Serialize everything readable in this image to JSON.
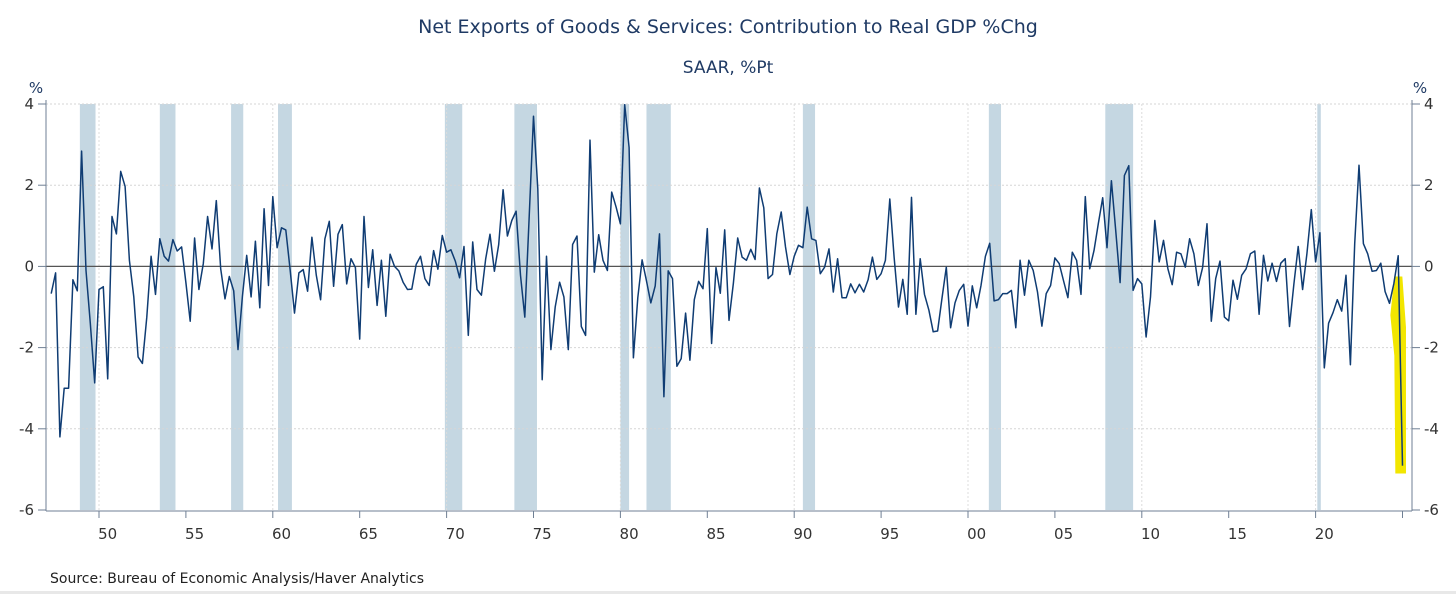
{
  "chart_data": {
    "type": "line",
    "title": "Net Exports of Goods & Services: Contribution to Real GDP %Chg",
    "subtitle": "SAAR, %Pt",
    "ylabel_left": "%",
    "ylabel_right": "%",
    "source": "Source:  Bureau of Economic Analysis/Haver Analytics",
    "ylim": [
      -6,
      4
    ],
    "yticks": [
      4,
      2,
      0,
      -2,
      -4,
      -6
    ],
    "ytick_labels": [
      "4",
      "2",
      "0",
      "-2",
      "-4",
      "-6"
    ],
    "xlim": [
      1947,
      2025.5
    ],
    "xticks": [
      1950,
      1955,
      1960,
      1965,
      1970,
      1975,
      1980,
      1985,
      1990,
      1995,
      2000,
      2005,
      2010,
      2015,
      2020
    ],
    "xtick_labels": [
      "50",
      "55",
      "60",
      "65",
      "70",
      "75",
      "80",
      "85",
      "90",
      "95",
      "00",
      "05",
      "10",
      "15",
      "20"
    ],
    "grid": true,
    "frequency": "quarterly",
    "x_start": 1947.25,
    "x_step": 0.25,
    "series": [
      {
        "name": "Net Exports contribution",
        "color": "#0f3c73",
        "values": [
          -0.67,
          -0.16,
          -4.2,
          -3.0,
          -3.0,
          -0.33,
          -0.6,
          2.84,
          -0.1,
          -1.4,
          -2.87,
          -0.57,
          -0.5,
          -2.77,
          1.23,
          0.8,
          2.34,
          1.97,
          0.15,
          -0.75,
          -2.23,
          -2.39,
          -1.25,
          0.25,
          -0.69,
          0.68,
          0.25,
          0.13,
          0.66,
          0.38,
          0.48,
          -0.4,
          -1.35,
          0.7,
          -0.57,
          0.07,
          1.23,
          0.43,
          1.62,
          -0.06,
          -0.8,
          -0.25,
          -0.6,
          -2.05,
          -0.74,
          0.27,
          -0.75,
          0.62,
          -1.02,
          1.42,
          -0.47,
          1.72,
          0.46,
          0.95,
          0.9,
          -0.1,
          -1.15,
          -0.16,
          -0.08,
          -0.61,
          0.72,
          -0.22,
          -0.82,
          0.68,
          1.11,
          -0.49,
          0.79,
          1.03,
          -0.43,
          0.19,
          -0.03,
          -1.79,
          1.23,
          -0.52,
          0.41,
          -0.96,
          0.15,
          -1.23,
          0.3,
          0,
          -0.11,
          -0.39,
          -0.57,
          -0.56,
          0.05,
          0.25,
          -0.3,
          -0.47,
          0.39,
          -0.07,
          0.76,
          0.35,
          0.41,
          0.13,
          -0.28,
          0.49,
          -1.7,
          0.6,
          -0.57,
          -0.71,
          0.19,
          0.79,
          -0.12,
          0.54,
          1.89,
          0.75,
          1.13,
          1.36,
          -0.22,
          -1.25,
          1.23,
          3.7,
          1.91,
          -2.79,
          0.25,
          -2.05,
          -1.0,
          -0.39,
          -0.75,
          -2.05,
          0.54,
          0.75,
          -1.48,
          -1.7,
          3.11,
          -0.14,
          0.78,
          0.15,
          -0.1,
          1.83,
          1.46,
          1.05,
          3.98,
          2.93,
          -2.25,
          -0.77,
          0.16,
          -0.36,
          -0.9,
          -0.48,
          0.8,
          -3.21,
          -0.11,
          -0.3,
          -2.46,
          -2.27,
          -1.15,
          -2.31,
          -0.82,
          -0.37,
          -0.55,
          0.93,
          -1.9,
          -0.03,
          -0.66,
          0.9,
          -1.33,
          -0.41,
          0.7,
          0.23,
          0.15,
          0.42,
          0.17,
          1.93,
          1.44,
          -0.3,
          -0.2,
          0.8,
          1.34,
          0.48,
          -0.2,
          0.25,
          0.52,
          0.46,
          1.46,
          0.68,
          0.64,
          -0.18,
          -0.02,
          0.43,
          -0.63,
          0.19,
          -0.77,
          -0.77,
          -0.43,
          -0.65,
          -0.44,
          -0.63,
          -0.33,
          0.23,
          -0.32,
          -0.18,
          0.15,
          1.66,
          0.23,
          -1.0,
          -0.32,
          -1.18,
          1.7,
          -1.18,
          0.19,
          -0.69,
          -1.08,
          -1.61,
          -1.59,
          -0.8,
          -0.02,
          -1.51,
          -0.9,
          -0.59,
          -0.44,
          -1.47,
          -0.48,
          -1.02,
          -0.47,
          0.25,
          0.57,
          -0.85,
          -0.82,
          -0.67,
          -0.67,
          -0.59,
          -1.51,
          0.15,
          -0.71,
          0.15,
          -0.1,
          -0.63,
          -1.47,
          -0.67,
          -0.47,
          0.21,
          0.07,
          -0.36,
          -0.77,
          0.35,
          0.15,
          -0.69,
          1.72,
          -0.06,
          0.39,
          1.05,
          1.69,
          0.46,
          2.11,
          0.89,
          -0.4,
          2.24,
          2.48,
          -0.59,
          -0.3,
          -0.43,
          -1.74,
          -0.75,
          1.13,
          0.11,
          0.64,
          -0.06,
          -0.45,
          0.35,
          0.31,
          -0.02,
          0.68,
          0.31,
          -0.47,
          -0.03,
          1.05,
          -1.35,
          -0.3,
          0.13,
          -1.25,
          -1.34,
          -0.34,
          -0.81,
          -0.22,
          -0.06,
          0.31,
          0.38,
          -1.18,
          0.27,
          -0.36,
          0.08,
          -0.37,
          0.08,
          0.19,
          -1.48,
          -0.43,
          0.49,
          -0.57,
          0.31,
          1.4,
          0.11,
          0.83,
          -2.5,
          -1.4,
          -1.14,
          -0.82,
          -1.1,
          -0.22,
          -2.42,
          0.56,
          2.49,
          0.56,
          0.31,
          -0.12,
          -0.1,
          0.08,
          -0.62,
          -0.91,
          -0.43,
          0.26,
          -4.91
        ]
      }
    ],
    "recessions": [
      [
        1948.9,
        1949.8
      ],
      [
        1953.5,
        1954.4
      ],
      [
        1957.6,
        1958.3
      ],
      [
        1960.3,
        1961.1
      ],
      [
        1969.9,
        1970.9
      ],
      [
        1973.9,
        1975.2
      ],
      [
        1980.0,
        1980.5
      ],
      [
        1981.5,
        1982.9
      ],
      [
        1990.5,
        1991.2
      ],
      [
        2001.2,
        2001.9
      ],
      [
        2007.9,
        2009.5
      ],
      [
        2020.1,
        2020.3
      ]
    ],
    "recession_color": "#c5d7e2",
    "highlight": {
      "x_range": [
        2024.3,
        2025.2
      ],
      "y_range": [
        -5.1,
        -0.25
      ],
      "color": "#f2e600"
    }
  }
}
